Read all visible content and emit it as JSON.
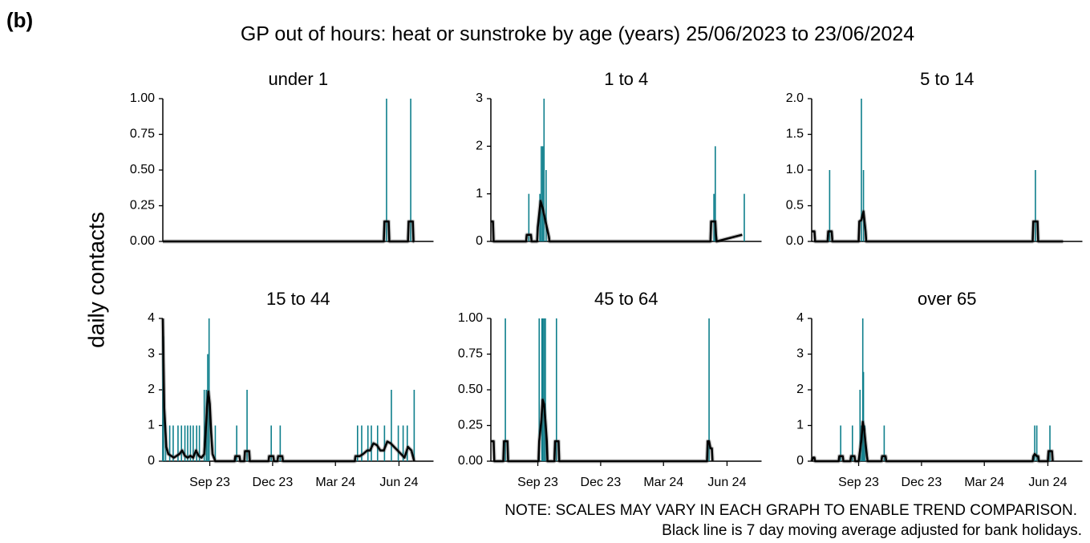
{
  "figure": {
    "label": "(b)",
    "title": "GP out of hours: heat or sunstroke by age (years) 25/06/2023 to 23/06/2024",
    "ylabel": "daily contacts",
    "notes": [
      "NOTE: SCALES MAY VARY IN EACH GRAPH TO ENABLE TREND COMPARISON.",
      "Black line is 7 day moving average adjusted for bank holidays."
    ]
  },
  "chart_data": [
    {
      "type": "line",
      "title": "under 1",
      "xlim": [
        0,
        392
      ],
      "ylim": [
        0,
        1
      ],
      "yticks": [
        {
          "value": 0,
          "label": "0.00"
        },
        0.25,
        {
          "value": 0.5,
          "label": "0.50"
        },
        0.75,
        {
          "value": 1,
          "label": "1.00"
        }
      ],
      "series": [
        {
          "type": "bar",
          "color": "#0e7f8c",
          "x": [
            324,
            359
          ],
          "values": [
            1,
            1
          ]
        },
        {
          "type": "line",
          "color": "#000000",
          "x": [
            0,
            320,
            321,
            324,
            327,
            328,
            355,
            356,
            359,
            362,
            363,
            364
          ],
          "values": [
            0,
            0,
            0.14,
            0.14,
            0.14,
            0,
            0,
            0.14,
            0.14,
            0.14,
            0,
            0
          ]
        }
      ]
    },
    {
      "type": "line",
      "title": "1 to 4",
      "xlim": [
        0,
        392
      ],
      "ylim": [
        0,
        3
      ],
      "yticks": [
        0,
        1,
        2,
        3
      ],
      "series": [
        {
          "type": "bar",
          "color": "#0e7f8c",
          "x": [
            55,
            71,
            73,
            75,
            77,
            80,
            323,
            325,
            367
          ],
          "values": [
            1,
            1,
            2,
            2,
            3,
            1.5,
            1,
            2,
            1
          ]
        },
        {
          "type": "line",
          "color": "#000000",
          "x": [
            0,
            1,
            2,
            3,
            4,
            51,
            52,
            58,
            59,
            67,
            68,
            72,
            75,
            78,
            84,
            85,
            318,
            319,
            325,
            326,
            327,
            364
          ],
          "values": [
            0.42,
            0.42,
            0.42,
            0.42,
            0,
            0,
            0.14,
            0.14,
            0,
            0,
            0.3,
            0.85,
            0.7,
            0.5,
            0.1,
            0,
            0,
            0.42,
            0.42,
            0.14,
            0,
            0.14
          ]
        }
      ]
    },
    {
      "type": "line",
      "title": "5 to 14",
      "xlim": [
        0,
        392
      ],
      "ylim": [
        0,
        2
      ],
      "yticks": [
        {
          "value": 0,
          "label": "0.0"
        },
        0.5,
        {
          "value": 1,
          "label": "1.0"
        },
        1.5,
        {
          "value": 2,
          "label": "2.0"
        }
      ],
      "series": [
        {
          "type": "bar",
          "color": "#0e7f8c",
          "x": [
            26,
            72,
            75,
            324
          ],
          "values": [
            1,
            2,
            1,
            1
          ]
        },
        {
          "type": "line",
          "color": "#000000",
          "x": [
            0,
            1,
            4,
            5,
            23,
            24,
            29,
            30,
            68,
            69,
            72,
            75,
            78,
            79,
            320,
            321,
            324,
            327,
            328,
            364
          ],
          "values": [
            0.14,
            0.14,
            0.14,
            0,
            0,
            0.14,
            0.14,
            0,
            0,
            0.28,
            0.3,
            0.42,
            0.14,
            0,
            0,
            0.28,
            0.28,
            0.28,
            0,
            0
          ]
        }
      ]
    },
    {
      "type": "line",
      "title": "15 to 44",
      "xlim": [
        0,
        392
      ],
      "ylim": [
        0,
        4
      ],
      "yticks": [
        0,
        1,
        2,
        3,
        4
      ],
      "xticks": [
        {
          "value": 68,
          "label": "Sep 23"
        },
        {
          "value": 159,
          "label": "Dec 23"
        },
        {
          "value": 250,
          "label": "Mar 24"
        },
        {
          "value": 342,
          "label": "Jun 24"
        }
      ],
      "series": [
        {
          "type": "bar",
          "color": "#0e7f8c",
          "x": [
            0,
            1,
            4,
            10,
            15,
            22,
            27,
            32,
            36,
            40,
            44,
            49,
            53,
            60,
            63,
            65,
            67,
            76,
            107,
            122,
            157,
            170,
            282,
            288,
            297,
            302,
            311,
            321,
            331,
            341,
            348,
            354,
            364
          ],
          "values": [
            4,
            3.5,
            1,
            1,
            1,
            1,
            1,
            1,
            1,
            1,
            1,
            1,
            1,
            2,
            2,
            3,
            4,
            1,
            1,
            2,
            1,
            1,
            1,
            1,
            1,
            1,
            1,
            1,
            2,
            1,
            1,
            1,
            2
          ]
        },
        {
          "type": "line",
          "color": "#000000",
          "x": [
            0,
            2,
            5,
            8,
            12,
            16,
            20,
            24,
            28,
            32,
            36,
            40,
            44,
            48,
            52,
            56,
            60,
            62,
            64,
            66,
            68,
            70,
            72,
            76,
            104,
            105,
            111,
            112,
            118,
            119,
            125,
            126,
            153,
            154,
            160,
            161,
            166,
            167,
            173,
            174,
            278,
            279,
            285,
            290,
            296,
            300,
            305,
            310,
            315,
            320,
            325,
            330,
            335,
            340,
            345,
            350,
            355,
            360,
            364
          ],
          "values": [
            4,
            1.5,
            0.4,
            0.2,
            0.15,
            0.1,
            0.15,
            0.2,
            0.3,
            0.15,
            0.1,
            0.15,
            0.1,
            0.3,
            0.15,
            0.1,
            0.2,
            0.8,
            1.5,
            1.95,
            1.6,
            0.8,
            0.2,
            0,
            0,
            0.14,
            0.14,
            0,
            0,
            0.28,
            0.28,
            0,
            0,
            0.14,
            0.14,
            0,
            0,
            0.14,
            0.14,
            0,
            0,
            0.14,
            0.14,
            0.2,
            0.3,
            0.3,
            0.5,
            0.45,
            0.3,
            0.3,
            0.55,
            0.5,
            0.4,
            0.3,
            0.2,
            0.1,
            0.4,
            0.3,
            0
          ]
        }
      ]
    },
    {
      "type": "line",
      "title": "45 to 64",
      "xlim": [
        0,
        392
      ],
      "ylim": [
        0,
        1
      ],
      "yticks": [
        {
          "value": 0,
          "label": "0.00"
        },
        0.25,
        {
          "value": 0.5,
          "label": "0.50"
        },
        0.75,
        {
          "value": 1,
          "label": "1.00"
        }
      ],
      "xticks": [
        {
          "value": 68,
          "label": "Sep 23"
        },
        {
          "value": 159,
          "label": "Dec 23"
        },
        {
          "value": 250,
          "label": "Mar 24"
        },
        {
          "value": 342,
          "label": "Jun 24"
        }
      ],
      "series": [
        {
          "type": "bar",
          "color": "#0e7f8c",
          "x": [
            21,
            70,
            74,
            75,
            77,
            79,
            95,
            316
          ],
          "values": [
            1,
            1,
            1,
            1,
            1,
            1,
            1,
            1
          ]
        },
        {
          "type": "line",
          "color": "#000000",
          "x": [
            0,
            1,
            4,
            5,
            18,
            19,
            24,
            25,
            69,
            70,
            73,
            75,
            77,
            79,
            81,
            82,
            92,
            93,
            98,
            99,
            313,
            314,
            316,
            318,
            320,
            321
          ],
          "values": [
            0.14,
            0.14,
            0.14,
            0,
            0,
            0.14,
            0.14,
            0,
            0,
            0.14,
            0.28,
            0.43,
            0.4,
            0.28,
            0.14,
            0,
            0,
            0.14,
            0.14,
            0,
            0,
            0.14,
            0.14,
            0.09,
            0.09,
            0
          ]
        }
      ]
    },
    {
      "type": "line",
      "title": "over 65",
      "xlim": [
        0,
        392
      ],
      "ylim": [
        0,
        4
      ],
      "yticks": [
        0,
        1,
        2,
        3,
        4
      ],
      "xticks": [
        {
          "value": 68,
          "label": "Sep 23"
        },
        {
          "value": 159,
          "label": "Dec 23"
        },
        {
          "value": 250,
          "label": "Mar 24"
        },
        {
          "value": 342,
          "label": "Jun 24"
        }
      ],
      "series": [
        {
          "type": "bar",
          "color": "#0e7f8c",
          "x": [
            42,
            59,
            70,
            72,
            74,
            75,
            77,
            105,
            323,
            326,
            345
          ],
          "values": [
            1,
            1,
            2,
            1,
            4,
            2.5,
            1,
            1,
            1,
            1,
            1
          ]
        },
        {
          "type": "line",
          "color": "#000000",
          "x": [
            0,
            2,
            4,
            5,
            39,
            40,
            45,
            46,
            56,
            57,
            62,
            63,
            68,
            70,
            72,
            74,
            76,
            78,
            80,
            81,
            101,
            102,
            107,
            108,
            320,
            321,
            323,
            326,
            328,
            329,
            342,
            343,
            345,
            348,
            349
          ],
          "values": [
            0,
            0.1,
            0.1,
            0,
            0,
            0.14,
            0.14,
            0,
            0,
            0.14,
            0.14,
            0,
            0,
            0.3,
            0.6,
            1.1,
            0.9,
            0.5,
            0.14,
            0,
            0,
            0.14,
            0.14,
            0,
            0,
            0.14,
            0.2,
            0.14,
            0.14,
            0,
            0,
            0.28,
            0.28,
            0.28,
            0
          ]
        }
      ]
    }
  ]
}
